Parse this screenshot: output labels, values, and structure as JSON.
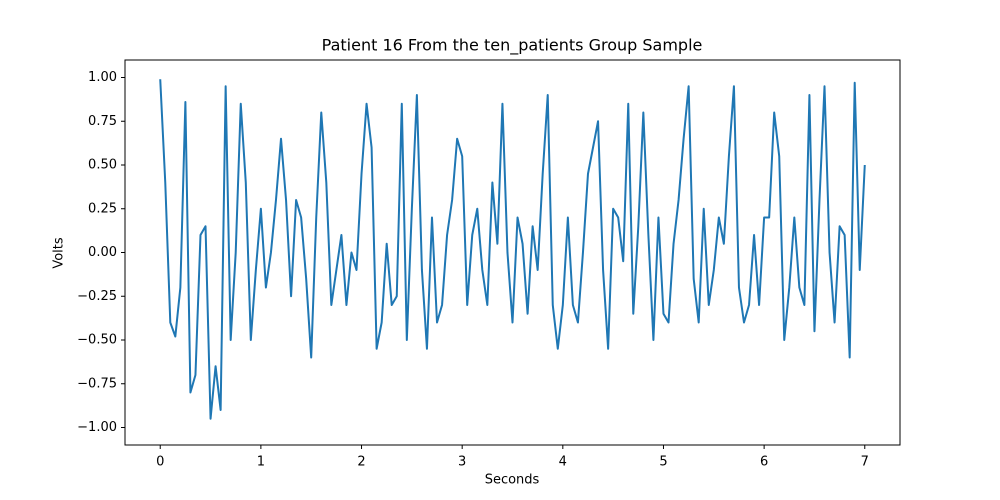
{
  "chart_data": {
    "type": "line",
    "title": "Patient 16 From the ten_patients Group Sample",
    "x_label": "Seconds",
    "y_label": "Volts",
    "xlim": [
      -0.35,
      7.35
    ],
    "ylim": [
      -1.1,
      1.1
    ],
    "xticks": [
      0,
      1,
      2,
      3,
      4,
      5,
      6,
      7
    ],
    "yticks": [
      {
        "value": -1,
        "label": "−1.00"
      },
      {
        "value": -0.75,
        "label": "−0.75"
      },
      {
        "value": -0.5,
        "label": "−0.50"
      },
      {
        "value": -0.25,
        "label": "−0.25"
      },
      {
        "value": 0,
        "label": "0.00"
      },
      {
        "value": 0.25,
        "label": "0.25"
      },
      {
        "value": 0.5,
        "label": "0.50"
      },
      {
        "value": 0.75,
        "label": "0.75"
      },
      {
        "value": 1,
        "label": "1.00"
      }
    ],
    "grid": false,
    "x": [
      0,
      0.05,
      0.1,
      0.15,
      0.2,
      0.25,
      0.3,
      0.35,
      0.4,
      0.45,
      0.5,
      0.55,
      0.6,
      0.65,
      0.7,
      0.75,
      0.8,
      0.85,
      0.9,
      0.95,
      1,
      1.05,
      1.1,
      1.15,
      1.2,
      1.25,
      1.3,
      1.35,
      1.4,
      1.45,
      1.5,
      1.55,
      1.6,
      1.65,
      1.7,
      1.75,
      1.8,
      1.85,
      1.9,
      1.95,
      2,
      2.05,
      2.1,
      2.15,
      2.2,
      2.25,
      2.3,
      2.35,
      2.4,
      2.45,
      2.5,
      2.55,
      2.6,
      2.65,
      2.7,
      2.75,
      2.8,
      2.85,
      2.9,
      2.95,
      3,
      3.05,
      3.1,
      3.15,
      3.2,
      3.25,
      3.3,
      3.35,
      3.4,
      3.45,
      3.5,
      3.55,
      3.6,
      3.65,
      3.7,
      3.75,
      3.8,
      3.85,
      3.9,
      3.95,
      4,
      4.05,
      4.1,
      4.15,
      4.2,
      4.25,
      4.3,
      4.35,
      4.4,
      4.45,
      4.5,
      4.55,
      4.6,
      4.65,
      4.7,
      4.75,
      4.8,
      4.85,
      4.9,
      4.95,
      5,
      5.05,
      5.1,
      5.15,
      5.2,
      5.25,
      5.3,
      5.35,
      5.4,
      5.45,
      5.5,
      5.55,
      5.6,
      5.65,
      5.7,
      5.75,
      5.8,
      5.85,
      5.9,
      5.95,
      6,
      6.05,
      6.1,
      6.15,
      6.2,
      6.25,
      6.3,
      6.35,
      6.4,
      6.45,
      6.5,
      6.55,
      6.6,
      6.65,
      6.7,
      6.75,
      6.8,
      6.85,
      6.9,
      6.95,
      7
    ],
    "series": [
      {
        "name": "Volts",
        "color": "#1f77b4",
        "values": [
          0.99,
          0.4,
          -0.4,
          -0.48,
          -0.2,
          0.86,
          -0.8,
          -0.7,
          0.1,
          0.15,
          -0.95,
          -0.65,
          -0.9,
          0.95,
          -0.5,
          0.0,
          0.85,
          0.4,
          -0.5,
          -0.1,
          0.25,
          -0.2,
          0.0,
          0.3,
          0.65,
          0.3,
          -0.25,
          0.3,
          0.2,
          -0.15,
          -0.6,
          0.2,
          0.8,
          0.4,
          -0.3,
          -0.1,
          0.1,
          -0.3,
          0.0,
          -0.1,
          0.45,
          0.85,
          0.6,
          -0.55,
          -0.4,
          0.05,
          -0.3,
          -0.25,
          0.85,
          -0.5,
          0.25,
          0.9,
          -0.1,
          -0.55,
          0.2,
          -0.4,
          -0.3,
          0.1,
          0.3,
          0.65,
          0.55,
          -0.3,
          0.1,
          0.25,
          -0.1,
          -0.3,
          0.4,
          0.05,
          0.85,
          0.0,
          -0.4,
          0.2,
          0.05,
          -0.35,
          0.15,
          -0.1,
          0.45,
          0.9,
          -0.3,
          -0.55,
          -0.3,
          0.2,
          -0.3,
          -0.4,
          0.0,
          0.45,
          0.6,
          0.75,
          -0.1,
          -0.55,
          0.25,
          0.2,
          -0.05,
          0.85,
          -0.35,
          0.15,
          0.8,
          0.1,
          -0.5,
          0.2,
          -0.35,
          -0.4,
          0.05,
          0.3,
          0.65,
          0.95,
          -0.15,
          -0.4,
          0.25,
          -0.3,
          -0.1,
          0.2,
          0.05,
          0.55,
          0.95,
          -0.2,
          -0.4,
          -0.3,
          0.1,
          -0.3,
          0.2,
          0.2,
          0.8,
          0.55,
          -0.5,
          -0.2,
          0.2,
          -0.2,
          -0.3,
          0.9,
          -0.45,
          0.3,
          0.95,
          0.0,
          -0.4,
          0.15,
          0.1,
          -0.6,
          0.97,
          -0.1,
          0.5
        ]
      }
    ]
  }
}
